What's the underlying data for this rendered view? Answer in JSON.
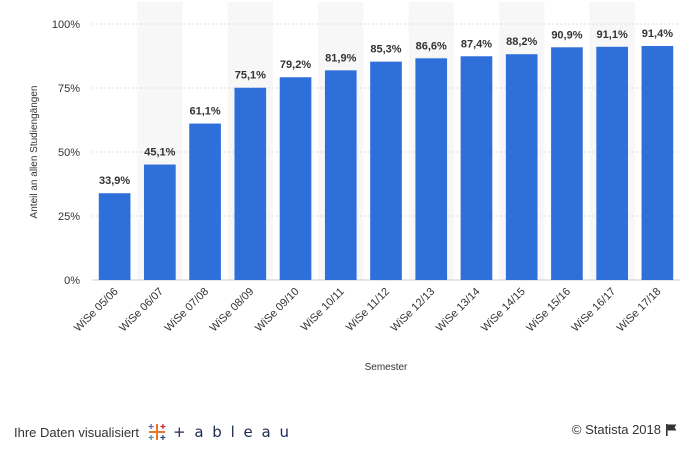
{
  "chart_data": {
    "type": "bar",
    "categories": [
      "WiSe 05/06",
      "WiSe 06/07",
      "WiSe 07/08",
      "WiSe 08/09",
      "WiSe 09/10",
      "WiSe 10/11",
      "WiSe 11/12",
      "WiSe 12/13",
      "WiSe 13/14",
      "WiSe 14/15",
      "WiSe 15/16",
      "WiSe 16/17",
      "WiSe 17/18"
    ],
    "values": [
      33.9,
      45.1,
      61.1,
      75.1,
      79.2,
      81.9,
      85.3,
      86.6,
      87.4,
      88.2,
      90.9,
      91.1,
      91.4
    ],
    "data_labels": [
      "33,9%",
      "45,1%",
      "61,1%",
      "75,1%",
      "79,2%",
      "81,9%",
      "85,3%",
      "86,6%",
      "87,4%",
      "88,2%",
      "90,9%",
      "91,1%",
      "91,4%"
    ],
    "xlabel": "Semester",
    "ylabel": "Anteil an allen Studiengängen",
    "ylim": [
      0,
      100
    ],
    "yticks": [
      0,
      25,
      50,
      75,
      100
    ],
    "ytick_labels": [
      "0%",
      "25%",
      "50%",
      "75%",
      "100%"
    ],
    "grid": true,
    "bar_color": "#2f6fd9"
  },
  "footer": {
    "left_text": "Ihre Daten visualisiert",
    "logo_text": "+ a b l e a u",
    "right_text": "© Statista 2018"
  },
  "icons": [
    "tableau-logo-icon",
    "flag-icon"
  ]
}
